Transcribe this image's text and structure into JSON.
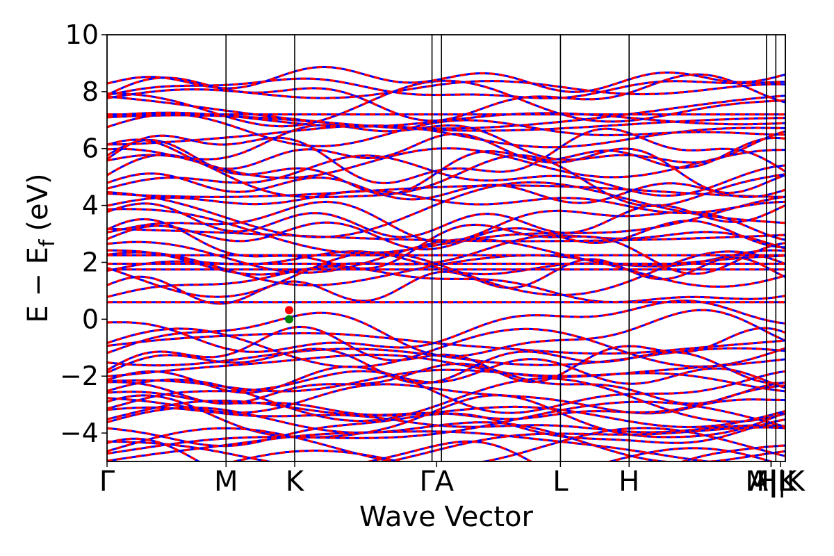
{
  "chart_data": {
    "type": "line",
    "title": "",
    "xlabel": "Wave Vector",
    "ylabel": "E − E",
    "ylabel_subscript": "f",
    "ylabel_units": "(eV)",
    "ylim": [
      -5,
      10
    ],
    "yticks": [
      10,
      8,
      6,
      4,
      2,
      0,
      -2,
      -4
    ],
    "ytick_labels": [
      "10",
      "8",
      "6",
      "4",
      "2",
      "0",
      "−2",
      "−4"
    ],
    "grid": false,
    "legend": "none",
    "colors": {
      "series_a": "#0000ff",
      "series_b": "#ff0000",
      "marker_vbm": "#008000",
      "marker_cbm": "#ff0000"
    },
    "kpath": [
      {
        "label": "Γ",
        "position": 0.0
      },
      {
        "label": "M",
        "position": 1.0
      },
      {
        "label": "K",
        "position": 1.577
      },
      {
        "label": "Γ",
        "position": 2.731
      },
      {
        "label": "A",
        "position": 2.81
      },
      {
        "label": "L",
        "position": 3.81
      },
      {
        "label": "H",
        "position": 4.387
      },
      {
        "label": "A",
        "position": 5.541
      },
      {
        "label": "|",
        "position": 5.541
      },
      {
        "label": "L",
        "position": 5.62
      },
      {
        "label": "M",
        "position": 5.541
      },
      {
        "label": "|",
        "position": 5.62
      },
      {
        "label": "K",
        "position": 5.7
      },
      {
        "label": "H",
        "position": 5.7
      }
    ],
    "kpoint_labels_drawn": [
      {
        "label": "Γ",
        "position": 0.0
      },
      {
        "label": "M",
        "position": 1.0
      },
      {
        "label": "K",
        "position": 1.577
      },
      {
        "label": "ΓA",
        "position": 2.77
      },
      {
        "label": "L",
        "position": 3.81
      },
      {
        "label": "H",
        "position": 4.387
      },
      {
        "label": "A|L",
        "position": 5.58
      },
      {
        "label": "M|K",
        "position": 5.58
      },
      {
        "label": "H|K",
        "position": 5.66
      }
    ],
    "xlim": [
      0.0,
      5.7
    ],
    "band_extrema": [
      {
        "name": "CBM",
        "k": 1.53,
        "energy": 0.32
      },
      {
        "name": "VBM",
        "k": 1.53,
        "energy": 0.0
      }
    ],
    "series": [
      {
        "band": "flat-conduction",
        "style": "flat",
        "energy": 0.6
      },
      {
        "band": "flat-conduction-2",
        "style": "flat",
        "energy": 2.25
      },
      {
        "band": "flat-mid-1",
        "style": "flat",
        "energy": 1.75
      },
      {
        "band": "flat-mid-2",
        "style": "flat",
        "energy": 1.95
      },
      {
        "band": "flat-high",
        "style": "flat",
        "energy": 7.2
      }
    ]
  }
}
